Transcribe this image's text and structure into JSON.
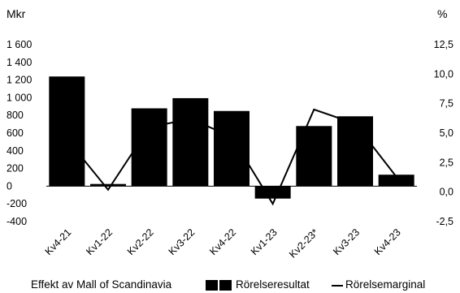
{
  "chart_data": {
    "type": "bar",
    "categories": [
      "Kv4-21",
      "Kv1-22",
      "Kv2-22",
      "Kv3-22",
      "Kv4-22",
      "Kv1-23",
      "Kv2-23*",
      "Kv3-23",
      "Kv4-23"
    ],
    "series": [
      {
        "name": "Rörelseresultat",
        "type": "bar",
        "axis": "left",
        "values": [
          1240,
          25,
          880,
          995,
          850,
          -140,
          680,
          790,
          130
        ]
      },
      {
        "name": "Rörelsemarginal",
        "type": "line",
        "axis": "right",
        "values": [
          4.5,
          0.2,
          5.5,
          6.2,
          4.7,
          -1.0,
          7.0,
          5.8,
          1.3
        ]
      }
    ],
    "left_axis": {
      "unit": "Mkr",
      "ylim": [
        -400,
        1600
      ],
      "ticks": [
        1600,
        1400,
        1200,
        1000,
        800,
        600,
        400,
        200,
        0,
        -200,
        -400
      ],
      "tick_labels": [
        "1 600",
        "1 400",
        "1 200",
        "1 000",
        "800",
        "600",
        "400",
        "200",
        "0",
        "-200",
        "-400"
      ]
    },
    "right_axis": {
      "unit": "%",
      "ylim": [
        -2.5,
        12.5
      ],
      "ticks": [
        12.5,
        10.0,
        7.5,
        5.0,
        2.5,
        0.0,
        -2.5
      ],
      "tick_labels": [
        "12,5",
        "10,0",
        "7,5",
        "5,0",
        "2,5",
        "0,0",
        "-2,5"
      ]
    },
    "grid": false,
    "colors": {
      "bar": "#000000",
      "line": "#000000"
    },
    "legend": {
      "placement": "bottom",
      "note": "Effekt av Mall of Scandinavia",
      "bar_label": "Rörelseresultat",
      "line_label": "Rörelsemarginal"
    }
  }
}
